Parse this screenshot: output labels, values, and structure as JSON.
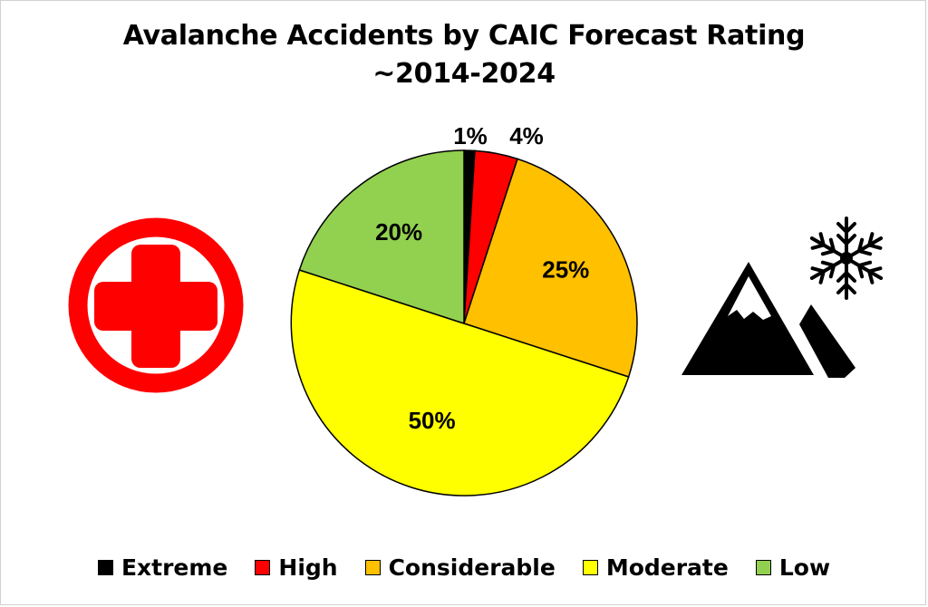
{
  "chart_data": {
    "type": "pie",
    "title": "Avalanche Accidents by CAIC Forecast Rating",
    "subtitle": "~2014-2024",
    "categories": [
      "Extreme",
      "High",
      "Considerable",
      "Moderate",
      "Low"
    ],
    "values": [
      1,
      4,
      25,
      50,
      20
    ],
    "labels": [
      "1%",
      "4%",
      "25%",
      "50%",
      "20%"
    ],
    "colors": [
      "#000000",
      "#ff0000",
      "#ffc000",
      "#ffff00",
      "#92d050"
    ],
    "legend_position": "bottom"
  },
  "icons": {
    "left": "medical-cross-icon",
    "right": "snowy-mountain-icon",
    "left_color": "#ff0000",
    "right_color": "#000000"
  }
}
